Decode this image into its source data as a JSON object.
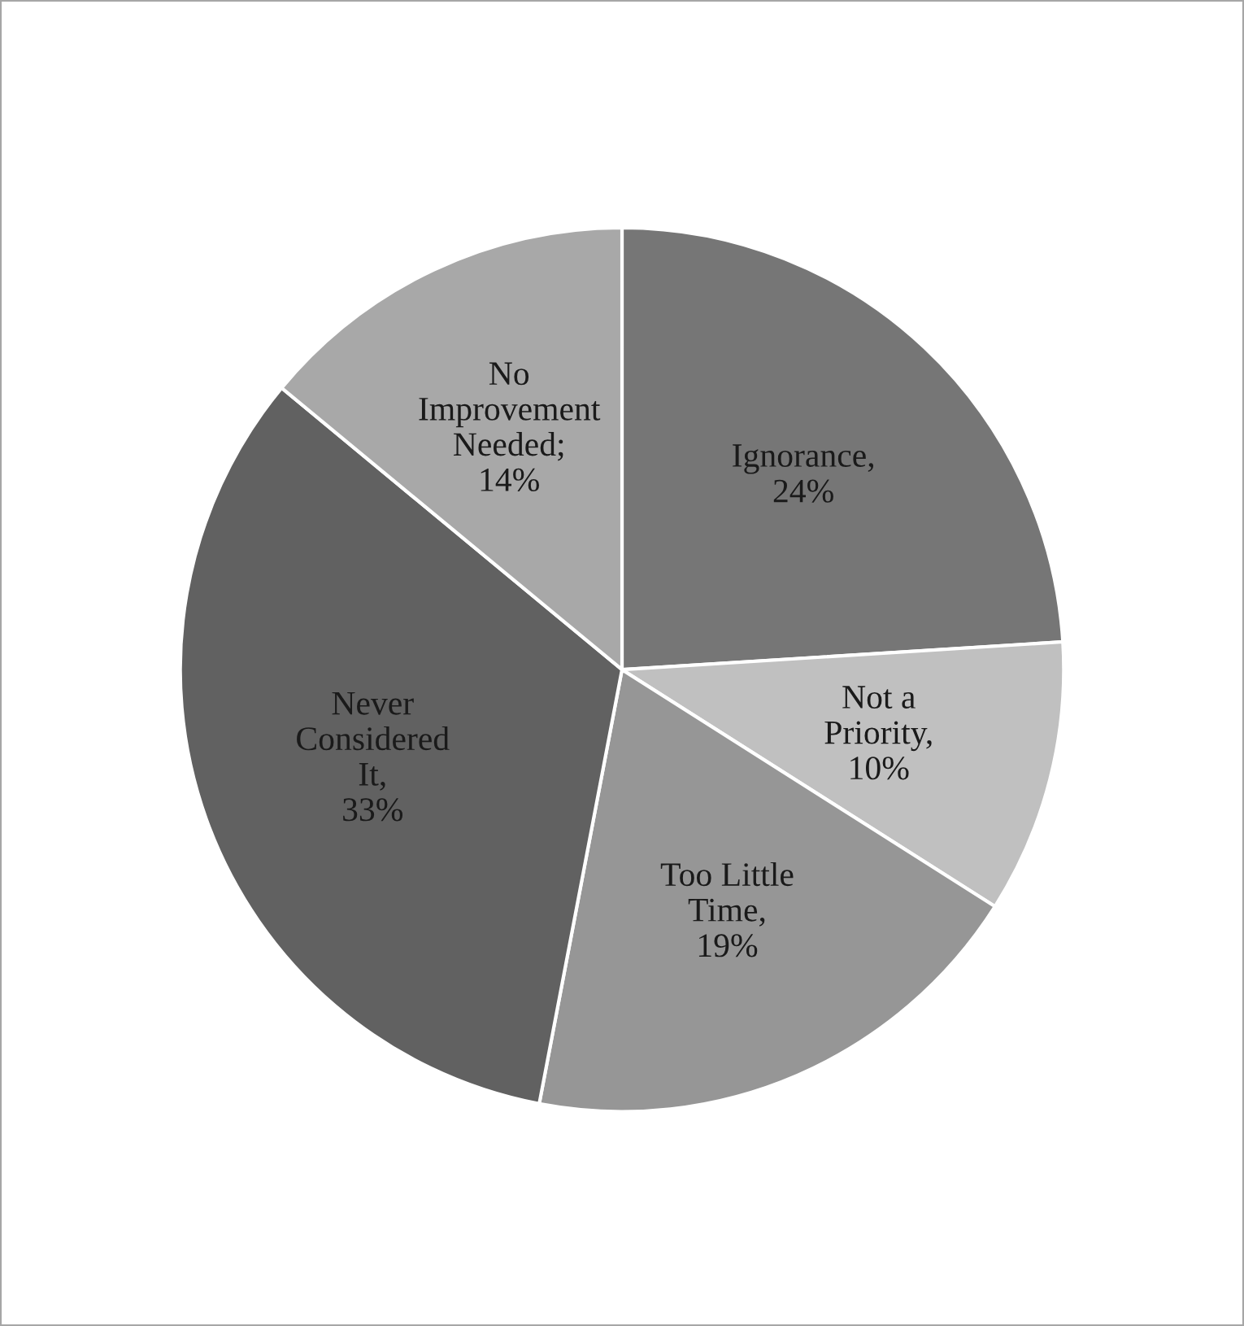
{
  "chart_data": {
    "type": "pie",
    "categories": [
      "Ignorance",
      "Not a Priority",
      "Too Little Time",
      "Never Considered It",
      "No Improvement Needed"
    ],
    "values": [
      24,
      10,
      19,
      33,
      14
    ],
    "value_labels": [
      ", 24%",
      ", 10%",
      ", 19%",
      ", 33%",
      "; 14%"
    ],
    "colors": [
      "#767676",
      "#c0c0c0",
      "#969696",
      "#616161",
      "#a8a8a8"
    ],
    "legend": false
  }
}
